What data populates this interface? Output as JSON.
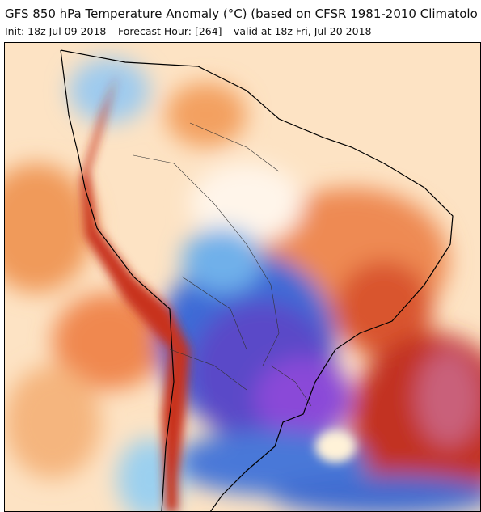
{
  "header": {
    "title": "GFS 850 hPa Temperature Anomaly (°C) (based on CFSR 1981-2010 Climatolo",
    "init": "Init: 18z Jul 09 2018",
    "forecast_hour": "Forecast Hour: [264]",
    "valid": "valid at 18z Fri, Jul 20 2018"
  }
}
